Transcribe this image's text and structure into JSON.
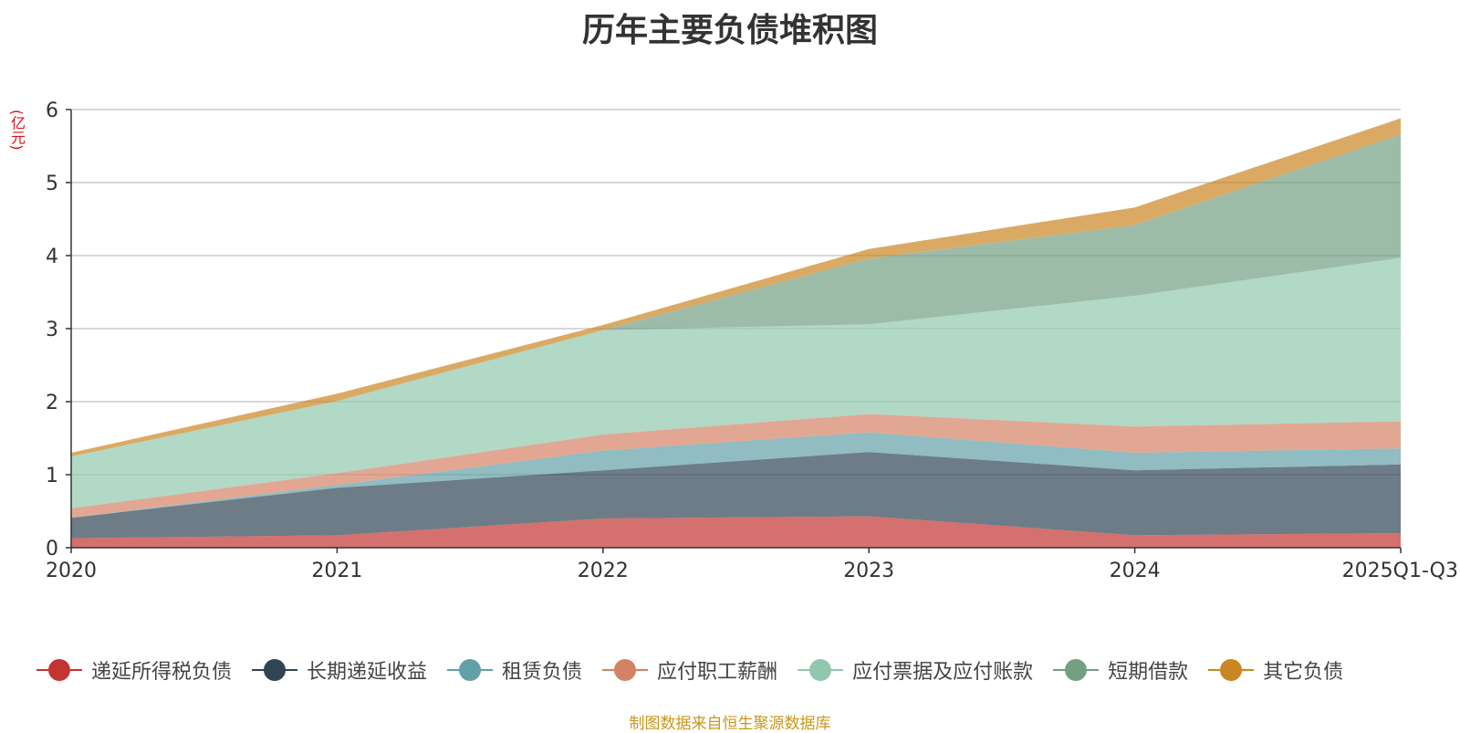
{
  "chart_data": {
    "type": "area",
    "stacked": true,
    "title": "历年主要负债堆积图",
    "ylabel": "(亿元)",
    "xlabel": "",
    "ylim": [
      0,
      6
    ],
    "yticks": [
      0,
      1,
      2,
      3,
      4,
      5,
      6
    ],
    "grid": true,
    "legend_position": "bottom",
    "categories": [
      "2020",
      "2021",
      "2022",
      "2023",
      "2024",
      "2025Q1-Q3"
    ],
    "series": [
      {
        "name": "递延所得税负债",
        "color": "#c23531",
        "values": [
          0.13,
          0.17,
          0.4,
          0.43,
          0.17,
          0.2
        ]
      },
      {
        "name": "长期递延收益",
        "color": "#2f4554",
        "values": [
          0.28,
          0.65,
          0.66,
          0.88,
          0.89,
          0.94
        ]
      },
      {
        "name": "租赁负债",
        "color": "#61a0a8",
        "values": [
          0.0,
          0.04,
          0.27,
          0.27,
          0.24,
          0.22
        ]
      },
      {
        "name": "应付职工薪酬",
        "color": "#d48265",
        "values": [
          0.13,
          0.16,
          0.22,
          0.25,
          0.36,
          0.37
        ]
      },
      {
        "name": "应付票据及应付账款",
        "color": "#91c7ae",
        "values": [
          0.71,
          0.99,
          1.43,
          1.23,
          1.79,
          2.24
        ]
      },
      {
        "name": "短期借款",
        "color": "#749f83",
        "values": [
          0.0,
          0.0,
          0.0,
          0.9,
          0.97,
          1.69
        ]
      },
      {
        "name": "其它负债",
        "color": "#ca8622",
        "values": [
          0.05,
          0.1,
          0.07,
          0.13,
          0.24,
          0.22
        ]
      }
    ]
  },
  "colors": {
    "title": "#333333",
    "unit_label": "#e0101b",
    "source": "#c9971c",
    "grid": "#cccccc",
    "axis": "#333333"
  },
  "source_note": "制图数据来自恒生聚源数据库"
}
